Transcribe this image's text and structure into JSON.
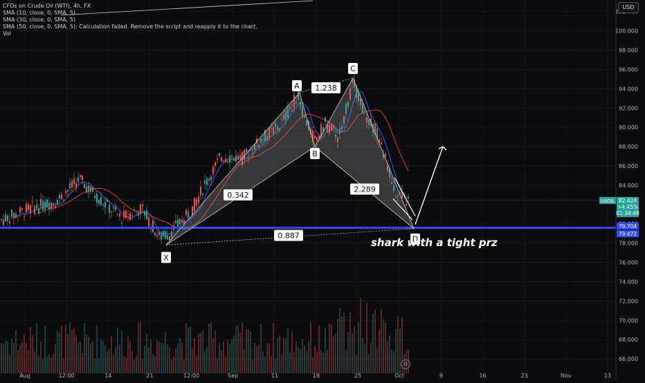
{
  "legend": {
    "title": "CFDs on Crude Oil (WTI), 4h, FX",
    "sma10": "SMA (10, close, 0, SMA, 5)",
    "sma30": "SMA (30, close, 0, SMA, 5)",
    "sma50": "SMA (50, close, 0, SMA, 5): Calculation failed. Remove the script and reapply it to the chart.",
    "vol": "Vol"
  },
  "currency_button": "USD",
  "settings_icon": "settings-icon",
  "colors": {
    "background": "#0b0b0e",
    "up": "#26a69a",
    "down": "#ef5350",
    "sma_fast": "#2962ff",
    "sma_slow": "#e53935",
    "pattern_fill": "#8a8a8a",
    "support_line": "#2f4bff"
  },
  "chart_data": {
    "type": "candlestick",
    "symbol": "USOIL",
    "timeframe": "4h",
    "y_axis": {
      "ticks": [
        "66.000",
        "68.000",
        "70.000",
        "72.000",
        "74.000",
        "76.000",
        "78.000",
        "80.000",
        "82.000",
        "84.000",
        "86.000",
        "88.000",
        "90.000",
        "92.000",
        "94.000",
        "96.000",
        "98.000",
        "100.000",
        "102.000"
      ],
      "range": [
        64.5,
        103.2
      ]
    },
    "x_axis": {
      "ticks": [
        "Aug",
        "12:00",
        "14",
        "21",
        "12:00",
        "Sep",
        "11",
        "18",
        "25",
        "Oct",
        "9",
        "16",
        "23",
        "Nov",
        "13"
      ]
    },
    "price_labels": {
      "last_symbol": "USOIL",
      "last_price": "82.424",
      "change": "+4.45%",
      "countdown": "01:34:48",
      "support_upper": "79.704",
      "support_lower": "79.472"
    },
    "harmonic_pattern": {
      "name": "shark with a tight prz",
      "points": [
        {
          "label": "X",
          "value": 77.8
        },
        {
          "label": "A",
          "value": 93.6
        },
        {
          "label": "B",
          "value": 88.0
        },
        {
          "label": "C",
          "value": 95.1
        },
        {
          "label": "D",
          "value": 79.5
        }
      ],
      "ratios": [
        {
          "label": "0.342",
          "leg": "XB"
        },
        {
          "label": "1.238",
          "leg": "AC"
        },
        {
          "label": "2.289",
          "leg": "BD"
        },
        {
          "label": "0.887",
          "leg": "XD"
        }
      ],
      "projection_target": 88.0
    },
    "series_anchors": [
      {
        "t": 0,
        "v": 80.3
      },
      {
        "t": 40,
        "v": 81.5
      },
      {
        "t": 80,
        "v": 82.3
      },
      {
        "t": 100,
        "v": 83.6
      },
      {
        "t": 115,
        "v": 84.6
      },
      {
        "t": 140,
        "v": 82.8
      },
      {
        "t": 175,
        "v": 80.6
      },
      {
        "t": 205,
        "v": 81.6
      },
      {
        "t": 230,
        "v": 78.6
      },
      {
        "t": 245,
        "v": 79.0
      },
      {
        "t": 275,
        "v": 81.2
      },
      {
        "t": 300,
        "v": 84.6
      },
      {
        "t": 320,
        "v": 87.0
      },
      {
        "t": 350,
        "v": 86.8
      },
      {
        "t": 380,
        "v": 88.9
      },
      {
        "t": 405,
        "v": 90.2
      },
      {
        "t": 430,
        "v": 93.4
      },
      {
        "t": 440,
        "v": 91.0
      },
      {
        "t": 455,
        "v": 88.6
      },
      {
        "t": 470,
        "v": 90.4
      },
      {
        "t": 490,
        "v": 89.0
      },
      {
        "t": 510,
        "v": 94.6
      },
      {
        "t": 528,
        "v": 91.4
      },
      {
        "t": 545,
        "v": 89.4
      },
      {
        "t": 560,
        "v": 86.0
      },
      {
        "t": 573,
        "v": 83.0
      },
      {
        "t": 590,
        "v": 82.4
      }
    ]
  }
}
